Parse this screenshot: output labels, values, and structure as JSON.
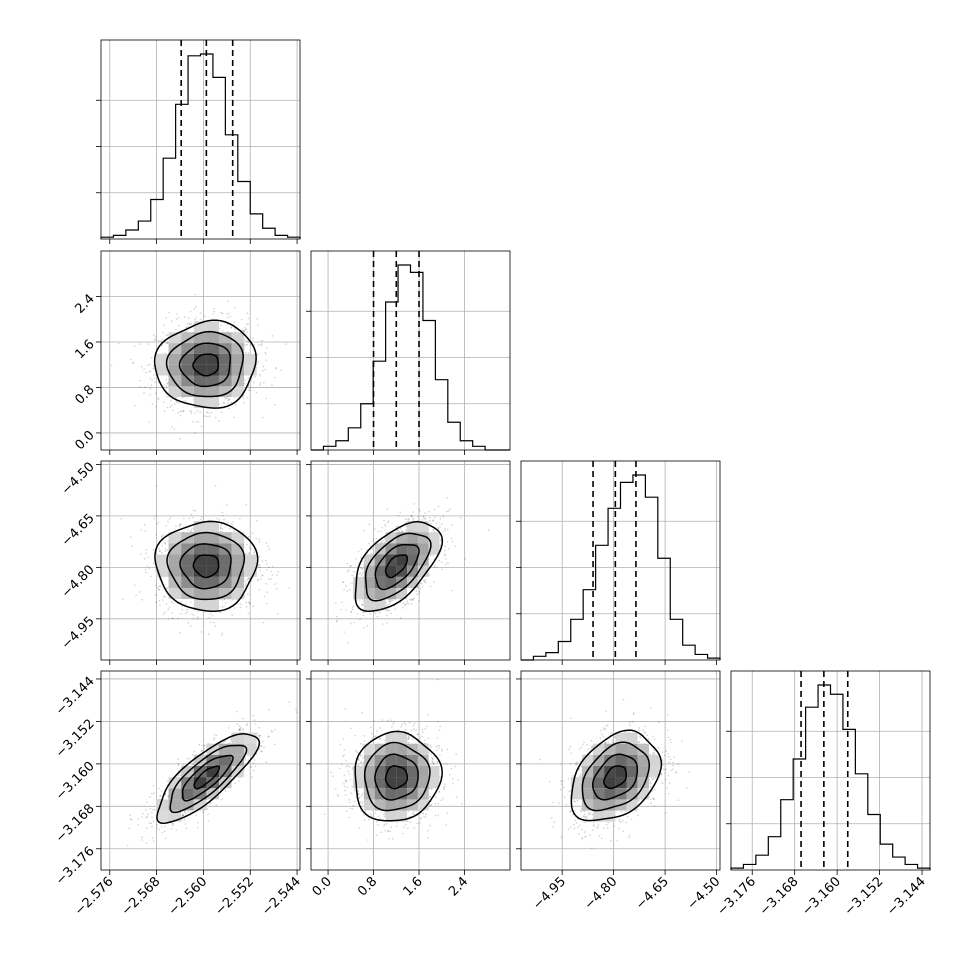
{
  "chart_data": {
    "type": "corner",
    "parameters": [
      {
        "index": 0,
        "range": [
          -2.5775,
          -2.5435
        ],
        "ticks": [
          -2.576,
          -2.568,
          -2.56,
          -2.552,
          -2.544
        ],
        "tick_labels": [
          "−2.576",
          "−2.568",
          "−2.560",
          "−2.552",
          "−2.544"
        ],
        "mean": -2.5595,
        "std": 0.0043,
        "quantiles": [
          -2.5638,
          -2.5595,
          -2.555
        ],
        "hist_counts": [
          1,
          2,
          5,
          10,
          22,
          45,
          75,
          102,
          103,
          90,
          58,
          32,
          14,
          6,
          2,
          1
        ]
      },
      {
        "index": 1,
        "range": [
          -0.3,
          3.2
        ],
        "ticks": [
          0.0,
          0.8,
          1.6,
          2.4
        ],
        "tick_labels": [
          "0.0",
          "0.8",
          "1.6",
          "2.4"
        ],
        "mean": 1.2,
        "std": 0.38,
        "quantiles": [
          0.8,
          1.2,
          1.6
        ],
        "hist_counts": [
          0,
          2,
          5,
          12,
          25,
          48,
          80,
          100,
          96,
          70,
          38,
          15,
          5,
          2,
          0,
          0
        ]
      },
      {
        "index": 2,
        "range": [
          -5.07,
          -4.49
        ],
        "ticks": [
          -4.95,
          -4.8,
          -4.65,
          -4.5
        ],
        "tick_labels": [
          "−4.95",
          "−4.80",
          "−4.65",
          "−4.50"
        ],
        "mean": -4.795,
        "std": 0.065,
        "quantiles": [
          -4.86,
          -4.795,
          -4.735
        ],
        "hist_counts": [
          0,
          2,
          4,
          10,
          22,
          38,
          62,
          82,
          96,
          100,
          88,
          55,
          22,
          8,
          3,
          1
        ]
      },
      {
        "index": 3,
        "range": [
          -3.18,
          -3.1425
        ],
        "ticks": [
          -3.176,
          -3.168,
          -3.16,
          -3.152,
          -3.144
        ],
        "tick_labels": [
          "−3.176",
          "−3.168",
          "−3.160",
          "−3.152",
          "−3.144"
        ],
        "mean": -3.1625,
        "std": 0.0042,
        "quantiles": [
          -3.1668,
          -3.1625,
          -3.158
        ],
        "hist_counts": [
          1,
          3,
          8,
          18,
          38,
          60,
          88,
          100,
          95,
          76,
          52,
          30,
          14,
          7,
          3,
          1
        ]
      }
    ],
    "correlations": {
      "1-0": 0.05,
      "2-0": 0.0,
      "2-1": 0.55,
      "3-0": 0.8,
      "3-1": 0.05,
      "3-2": 0.35
    },
    "contour_levels_sigma": [
      0.5,
      1.0,
      1.5,
      2.0
    ],
    "axis_label_rotation": -45,
    "grid": true
  }
}
